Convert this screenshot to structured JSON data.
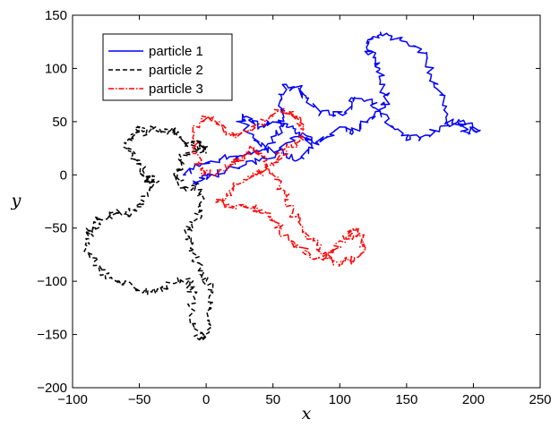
{
  "chart_data": {
    "type": "line",
    "title": "",
    "xlabel": "x",
    "ylabel": "y",
    "xlim": [
      -100,
      250
    ],
    "ylim": [
      -200,
      150
    ],
    "xticks": [
      "−100",
      "−50",
      "0",
      "50",
      "100",
      "150",
      "200",
      "250"
    ],
    "yticks": [
      "150",
      "100",
      "50",
      "0",
      "−50",
      "−100",
      "−150",
      "−200"
    ],
    "grid": false,
    "legend_position": "top-left",
    "series": [
      {
        "name": "particle 1",
        "color": "#0000ff",
        "style": "solid",
        "points": [
          [
            -15,
            0
          ],
          [
            -5,
            8
          ],
          [
            10,
            15
          ],
          [
            25,
            18
          ],
          [
            40,
            22
          ],
          [
            50,
            30
          ],
          [
            55,
            45
          ],
          [
            58,
            55
          ],
          [
            56,
            70
          ],
          [
            60,
            85
          ],
          [
            70,
            80
          ],
          [
            75,
            72
          ],
          [
            85,
            60
          ],
          [
            95,
            55
          ],
          [
            105,
            58
          ],
          [
            110,
            72
          ],
          [
            120,
            70
          ],
          [
            130,
            60
          ],
          [
            140,
            45
          ],
          [
            150,
            35
          ],
          [
            160,
            35
          ],
          [
            175,
            45
          ],
          [
            190,
            50
          ],
          [
            195,
            40
          ],
          [
            205,
            42
          ],
          [
            195,
            48
          ],
          [
            180,
            50
          ],
          [
            175,
            75
          ],
          [
            168,
            90
          ],
          [
            165,
            115
          ],
          [
            150,
            125
          ],
          [
            135,
            133
          ],
          [
            125,
            130
          ],
          [
            120,
            120
          ],
          [
            125,
            110
          ],
          [
            130,
            100
          ],
          [
            130,
            85
          ],
          [
            135,
            70
          ],
          [
            130,
            60
          ],
          [
            120,
            50
          ],
          [
            110,
            40
          ],
          [
            100,
            45
          ],
          [
            90,
            35
          ],
          [
            80,
            30
          ],
          [
            70,
            40
          ],
          [
            60,
            45
          ],
          [
            50,
            50
          ],
          [
            40,
            45
          ],
          [
            30,
            55
          ],
          [
            25,
            50
          ],
          [
            35,
            35
          ],
          [
            45,
            25
          ],
          [
            60,
            20
          ],
          [
            70,
            15
          ],
          [
            80,
            25
          ],
          [
            75,
            35
          ],
          [
            60,
            30
          ],
          [
            45,
            15
          ],
          [
            30,
            10
          ],
          [
            15,
            5
          ],
          [
            5,
            0
          ],
          [
            -2,
            -3
          ],
          [
            -10,
            -8
          ]
        ]
      },
      {
        "name": "particle 2",
        "color": "#000000",
        "style": "dashed",
        "points": [
          [
            0,
            25
          ],
          [
            -8,
            32
          ],
          [
            -15,
            28
          ],
          [
            -20,
            35
          ],
          [
            -25,
            42
          ],
          [
            -30,
            40
          ],
          [
            -38,
            45
          ],
          [
            -45,
            38
          ],
          [
            -50,
            45
          ],
          [
            -55,
            35
          ],
          [
            -60,
            30
          ],
          [
            -55,
            20
          ],
          [
            -50,
            10
          ],
          [
            -48,
            0
          ],
          [
            -45,
            -5
          ],
          [
            -42,
            -2
          ],
          [
            -38,
            -8
          ],
          [
            -45,
            -20
          ],
          [
            -52,
            -30
          ],
          [
            -58,
            -38
          ],
          [
            -65,
            -35
          ],
          [
            -72,
            -38
          ],
          [
            -80,
            -42
          ],
          [
            -85,
            -50
          ],
          [
            -90,
            -60
          ],
          [
            -88,
            -75
          ],
          [
            -80,
            -85
          ],
          [
            -75,
            -95
          ],
          [
            -65,
            -100
          ],
          [
            -55,
            -105
          ],
          [
            -45,
            -110
          ],
          [
            -35,
            -108
          ],
          [
            -25,
            -102
          ],
          [
            -15,
            -98
          ],
          [
            -10,
            -110
          ],
          [
            -12,
            -125
          ],
          [
            -8,
            -140
          ],
          [
            -5,
            -155
          ],
          [
            0,
            -152
          ],
          [
            2,
            -140
          ],
          [
            3,
            -125
          ],
          [
            5,
            -110
          ],
          [
            0,
            -100
          ],
          [
            -5,
            -90
          ],
          [
            -8,
            -78
          ],
          [
            -12,
            -65
          ],
          [
            -15,
            -55
          ],
          [
            -10,
            -45
          ],
          [
            -5,
            -35
          ],
          [
            -2,
            -22
          ],
          [
            -8,
            -10
          ],
          [
            -15,
            -15
          ],
          [
            -20,
            -5
          ],
          [
            -22,
            5
          ],
          [
            -18,
            15
          ],
          [
            -10,
            22
          ],
          [
            -5,
            28
          ],
          [
            0,
            20
          ]
        ]
      },
      {
        "name": "particle 3",
        "color": "#ff0000",
        "style": "dash-dot",
        "points": [
          [
            -5,
            10
          ],
          [
            -8,
            20
          ],
          [
            -10,
            35
          ],
          [
            -5,
            50
          ],
          [
            2,
            55
          ],
          [
            10,
            50
          ],
          [
            15,
            40
          ],
          [
            22,
            35
          ],
          [
            30,
            40
          ],
          [
            40,
            48
          ],
          [
            50,
            55
          ],
          [
            58,
            62
          ],
          [
            65,
            55
          ],
          [
            70,
            50
          ],
          [
            72,
            40
          ],
          [
            68,
            30
          ],
          [
            60,
            25
          ],
          [
            55,
            18
          ],
          [
            50,
            10
          ],
          [
            45,
            5
          ],
          [
            38,
            0
          ],
          [
            30,
            -5
          ],
          [
            20,
            -12
          ],
          [
            15,
            -20
          ],
          [
            10,
            -25
          ],
          [
            15,
            -30
          ],
          [
            25,
            -28
          ],
          [
            35,
            -30
          ],
          [
            40,
            -35
          ],
          [
            48,
            -40
          ],
          [
            55,
            -50
          ],
          [
            62,
            -62
          ],
          [
            70,
            -68
          ],
          [
            78,
            -75
          ],
          [
            88,
            -80
          ],
          [
            100,
            -85
          ],
          [
            105,
            -78
          ],
          [
            110,
            -82
          ],
          [
            115,
            -75
          ],
          [
            118,
            -65
          ],
          [
            115,
            -55
          ],
          [
            110,
            -52
          ],
          [
            108,
            -58
          ],
          [
            100,
            -62
          ],
          [
            95,
            -70
          ],
          [
            90,
            -78
          ],
          [
            85,
            -72
          ],
          [
            80,
            -62
          ],
          [
            75,
            -55
          ],
          [
            70,
            -45
          ],
          [
            65,
            -35
          ],
          [
            60,
            -20
          ],
          [
            55,
            -10
          ],
          [
            50,
            0
          ],
          [
            45,
            10
          ],
          [
            40,
            20
          ],
          [
            35,
            25
          ],
          [
            30,
            20
          ],
          [
            25,
            15
          ],
          [
            20,
            10
          ],
          [
            10,
            5
          ],
          [
            0,
            0
          ],
          [
            -3,
            5
          ]
        ]
      }
    ]
  }
}
